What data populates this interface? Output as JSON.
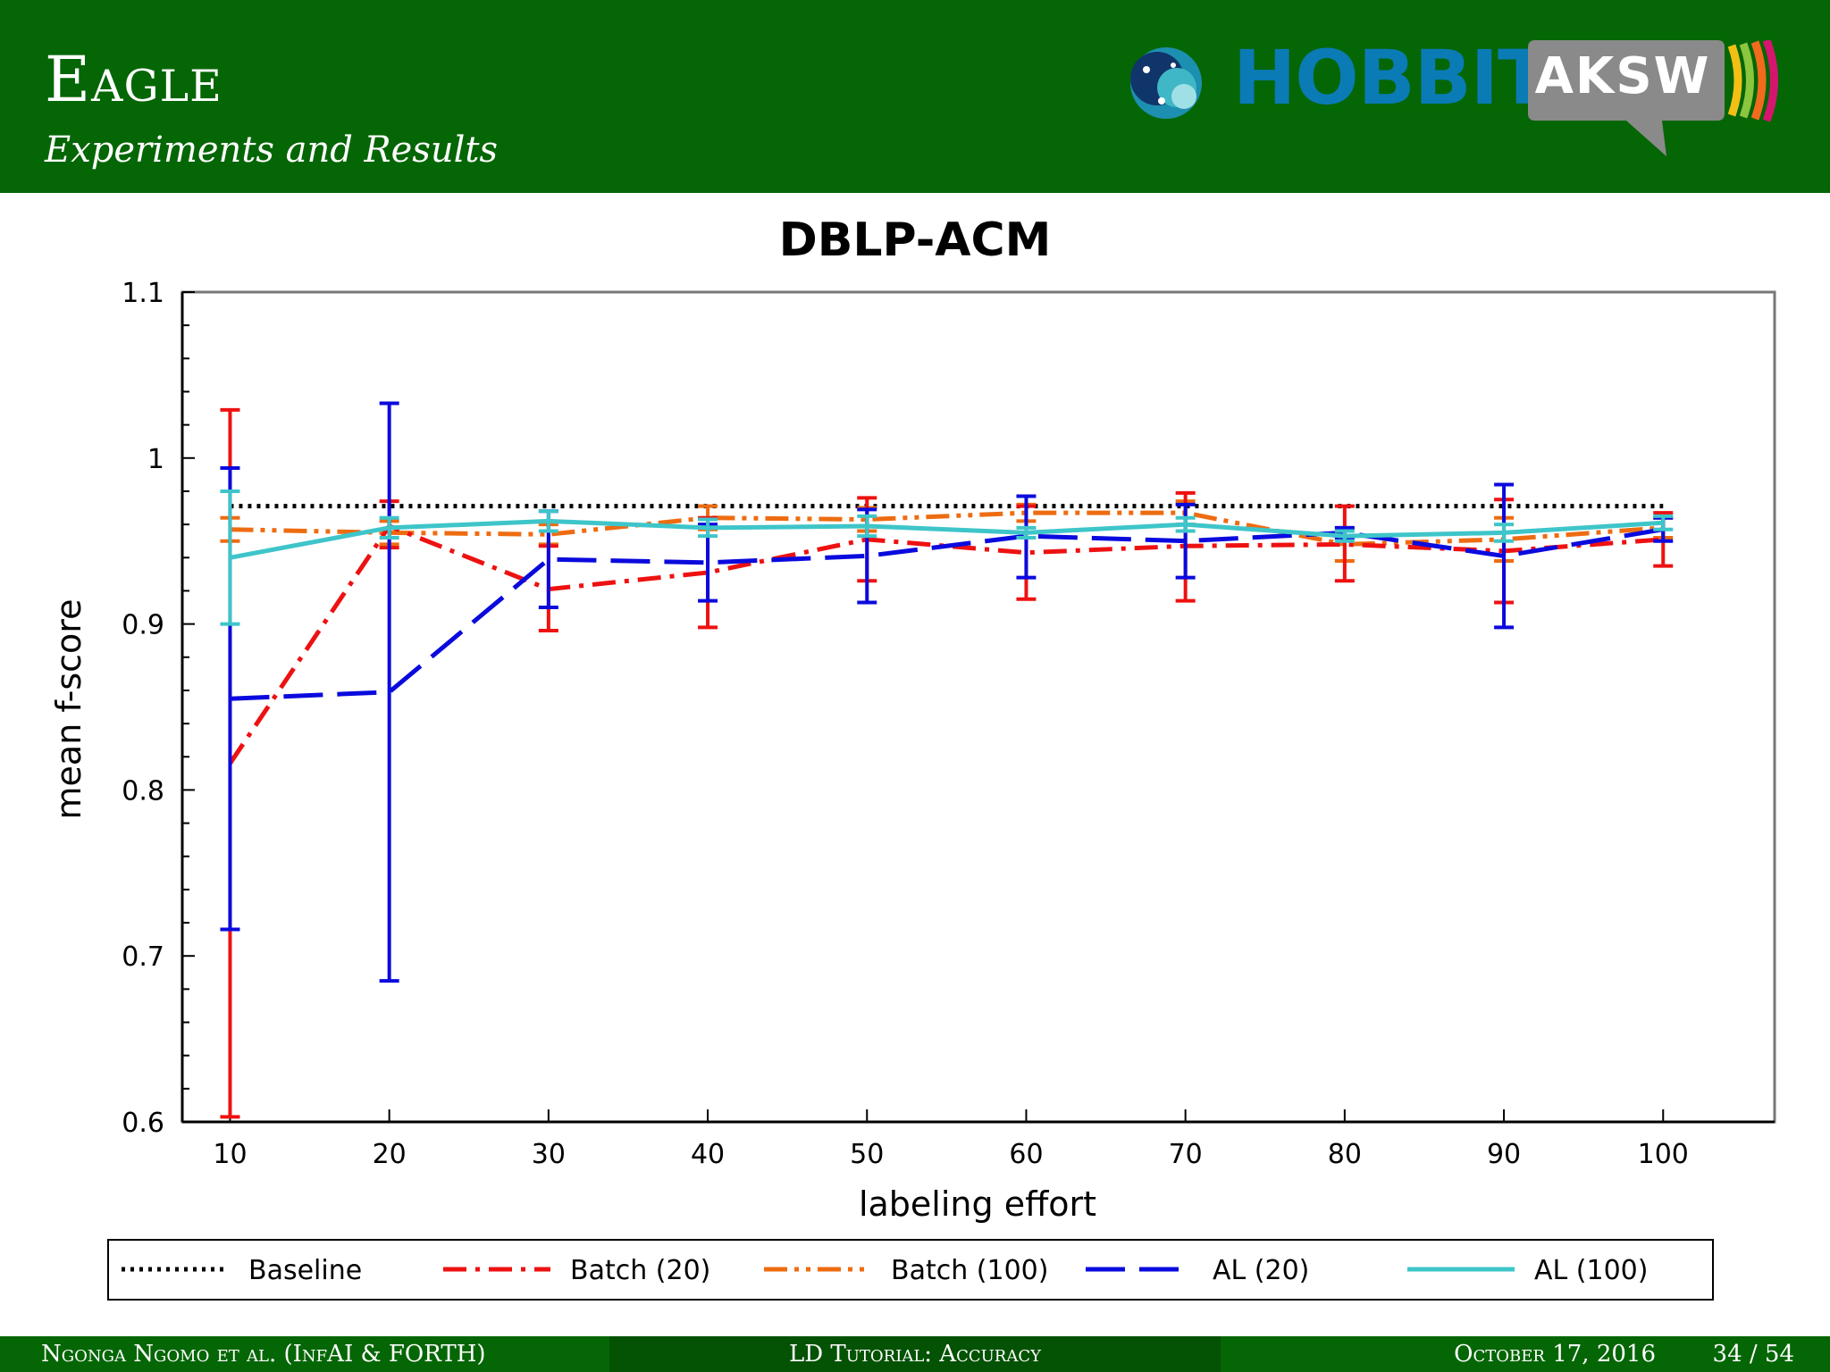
{
  "header": {
    "title": "Eagle",
    "subtitle": "Experiments and Results",
    "logo_hobbit": "HOBBIT",
    "logo_aksw": "AKSW"
  },
  "footer": {
    "authors": "Ngonga Ngomo et al. (InfAI & FORTH)",
    "talk": "LD Tutorial: Accuracy",
    "date": "October 17, 2016",
    "page": "34 / 54"
  },
  "chart_data": {
    "type": "line",
    "title": "DBLP-ACM",
    "xlabel": "labeling effort",
    "ylabel": "mean f-score",
    "x": [
      10,
      20,
      30,
      40,
      50,
      60,
      70,
      80,
      90,
      100
    ],
    "xlim": [
      7,
      107
    ],
    "ylim": [
      0.6,
      1.1
    ],
    "yticks": [
      "0.6",
      "0.7",
      "0.8",
      "0.9",
      "1",
      "1.1"
    ],
    "xticks": [
      "10",
      "20",
      "30",
      "40",
      "50",
      "60",
      "70",
      "80",
      "90",
      "100"
    ],
    "grid": false,
    "legend_position": "bottom",
    "series": [
      {
        "name": "Baseline",
        "color": "#000000",
        "style": "dotted",
        "values": [
          0.971,
          0.971,
          0.971,
          0.971,
          0.971,
          0.971,
          0.971,
          0.971,
          0.971,
          0.971
        ]
      },
      {
        "name": "Batch (20)",
        "color": "#ee1111",
        "style": "dashdot",
        "values": [
          0.816,
          0.959,
          0.921,
          0.931,
          0.951,
          0.943,
          0.947,
          0.948,
          0.944,
          0.951
        ],
        "err_low": [
          0.603,
          0.946,
          0.896,
          0.898,
          0.926,
          0.915,
          0.914,
          0.926,
          0.913,
          0.935
        ],
        "err_high": [
          1.029,
          0.974,
          0.947,
          0.964,
          0.976,
          0.971,
          0.979,
          0.971,
          0.975,
          0.967
        ]
      },
      {
        "name": "Batch (100)",
        "color": "#ee6c11",
        "style": "dashdotdot",
        "values": [
          0.957,
          0.955,
          0.954,
          0.964,
          0.963,
          0.967,
          0.967,
          0.948,
          0.951,
          0.958
        ],
        "err_low": [
          0.95,
          0.948,
          0.948,
          0.957,
          0.956,
          0.962,
          0.96,
          0.938,
          0.938,
          0.952
        ],
        "err_high": [
          0.964,
          0.962,
          0.96,
          0.971,
          0.97,
          0.972,
          0.974,
          0.958,
          0.964,
          0.964
        ]
      },
      {
        "name": "AL (20)",
        "color": "#0a0ade",
        "style": "longdash",
        "values": [
          0.855,
          0.859,
          0.939,
          0.937,
          0.941,
          0.953,
          0.95,
          0.955,
          0.941,
          0.957
        ],
        "err_low": [
          0.716,
          0.685,
          0.91,
          0.914,
          0.913,
          0.928,
          0.928,
          0.952,
          0.898,
          0.95
        ],
        "err_high": [
          0.994,
          1.033,
          0.968,
          0.96,
          0.969,
          0.977,
          0.972,
          0.958,
          0.984,
          0.964
        ]
      },
      {
        "name": "AL (100)",
        "color": "#3ec5c9",
        "style": "solid",
        "values": [
          0.94,
          0.958,
          0.962,
          0.958,
          0.959,
          0.955,
          0.96,
          0.953,
          0.955,
          0.961
        ],
        "err_low": [
          0.9,
          0.952,
          0.956,
          0.953,
          0.953,
          0.952,
          0.956,
          0.95,
          0.95,
          0.957
        ],
        "err_high": [
          0.98,
          0.964,
          0.968,
          0.963,
          0.965,
          0.958,
          0.964,
          0.956,
          0.96,
          0.965
        ]
      }
    ]
  }
}
